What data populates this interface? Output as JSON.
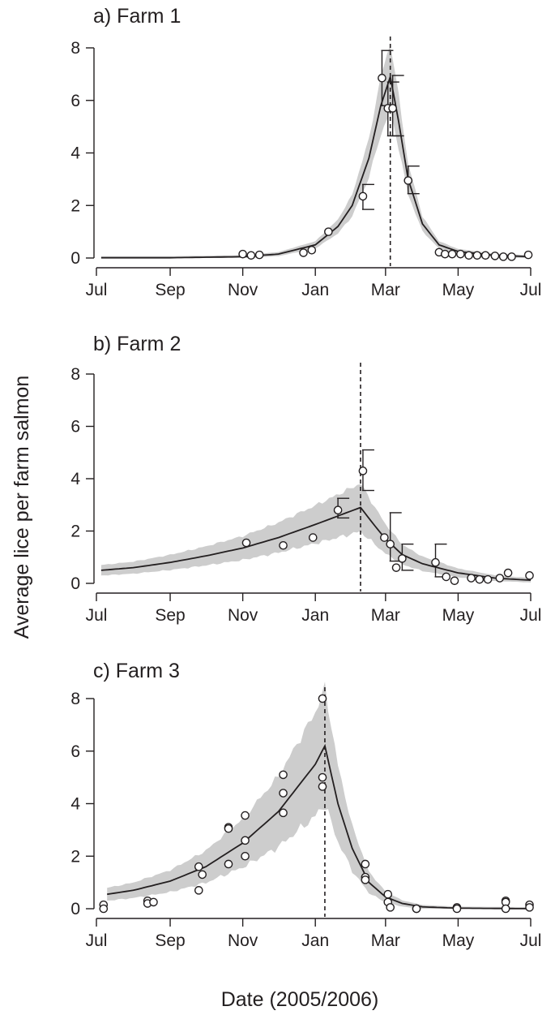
{
  "figure": {
    "ylabel": "Average lice per farm salmon",
    "xlabel": "Date (2005/2006)"
  },
  "chart_data": [
    {
      "type": "scatter",
      "title": "a) Farm 1",
      "x_tick_labels": [
        "Jul",
        "Sep",
        "Nov",
        "Jan",
        "Mar",
        "May",
        "Jul"
      ],
      "x_tick_dates": [
        "2005-07-01",
        "2005-09-01",
        "2005-11-01",
        "2006-01-01",
        "2006-03-01",
        "2006-05-01",
        "2006-07-01"
      ],
      "y_ticks": [
        0,
        2,
        4,
        6,
        8
      ],
      "ylim": [
        0,
        8
      ],
      "xlim": [
        "2005-07-01",
        "2006-07-01"
      ],
      "peak_date": "2006-03-05",
      "model_curve": [
        {
          "x": "2005-07-05",
          "y": 0.01
        },
        {
          "x": "2005-09-01",
          "y": 0.01
        },
        {
          "x": "2005-11-01",
          "y": 0.05
        },
        {
          "x": "2005-12-01",
          "y": 0.15
        },
        {
          "x": "2006-01-01",
          "y": 0.5
        },
        {
          "x": "2006-01-20",
          "y": 1.2
        },
        {
          "x": "2006-02-01",
          "y": 2.0
        },
        {
          "x": "2006-02-15",
          "y": 3.8
        },
        {
          "x": "2006-02-25",
          "y": 5.8
        },
        {
          "x": "2006-03-05",
          "y": 6.9
        },
        {
          "x": "2006-03-12",
          "y": 5.2
        },
        {
          "x": "2006-03-20",
          "y": 3.0
        },
        {
          "x": "2006-04-01",
          "y": 1.3
        },
        {
          "x": "2006-04-15",
          "y": 0.5
        },
        {
          "x": "2006-05-01",
          "y": 0.25
        },
        {
          "x": "2006-06-01",
          "y": 0.1
        },
        {
          "x": "2006-07-01",
          "y": 0.05
        }
      ],
      "band_halfwidth": 0.18,
      "points": [
        {
          "x": "2005-11-01",
          "y": 0.15
        },
        {
          "x": "2005-11-08",
          "y": 0.1
        },
        {
          "x": "2005-11-15",
          "y": 0.12
        },
        {
          "x": "2005-12-22",
          "y": 0.2
        },
        {
          "x": "2005-12-29",
          "y": 0.3
        },
        {
          "x": "2006-01-12",
          "y": 1.0
        },
        {
          "x": "2006-02-10",
          "y": 2.35
        },
        {
          "x": "2006-02-26",
          "y": 6.85
        },
        {
          "x": "2006-03-03",
          "y": 5.7
        },
        {
          "x": "2006-03-07",
          "y": 5.7
        },
        {
          "x": "2006-03-20",
          "y": 2.95
        },
        {
          "x": "2006-04-15",
          "y": 0.22
        },
        {
          "x": "2006-04-20",
          "y": 0.15
        },
        {
          "x": "2006-04-26",
          "y": 0.15
        },
        {
          "x": "2006-05-03",
          "y": 0.15
        },
        {
          "x": "2006-05-10",
          "y": 0.1
        },
        {
          "x": "2006-05-17",
          "y": 0.1
        },
        {
          "x": "2006-05-24",
          "y": 0.1
        },
        {
          "x": "2006-06-01",
          "y": 0.08
        },
        {
          "x": "2006-06-08",
          "y": 0.05
        },
        {
          "x": "2006-06-15",
          "y": 0.05
        },
        {
          "x": "2006-06-29",
          "y": 0.12
        }
      ],
      "error_bars": [
        {
          "x": "2006-02-10",
          "lo": 1.85,
          "hi": 2.8
        },
        {
          "x": "2006-02-26",
          "lo": 5.8,
          "hi": 7.9
        },
        {
          "x": "2006-03-03",
          "lo": 4.65,
          "hi": 6.7
        },
        {
          "x": "2006-03-07",
          "lo": 4.65,
          "hi": 6.95
        },
        {
          "x": "2006-03-20",
          "lo": 2.45,
          "hi": 3.5
        }
      ]
    },
    {
      "type": "scatter",
      "title": "b) Farm 2",
      "x_tick_labels": [
        "Jul",
        "Sep",
        "Nov",
        "Jan",
        "Mar",
        "May",
        "Jul"
      ],
      "x_tick_dates": [
        "2005-07-01",
        "2005-09-01",
        "2005-11-01",
        "2006-01-01",
        "2006-03-01",
        "2006-05-01",
        "2006-07-01"
      ],
      "y_ticks": [
        0,
        2,
        4,
        6,
        8
      ],
      "ylim": [
        0,
        8
      ],
      "xlim": [
        "2005-07-01",
        "2006-07-01"
      ],
      "peak_date": "2006-02-08",
      "model_curve": [
        {
          "x": "2005-07-05",
          "y": 0.5
        },
        {
          "x": "2005-08-01",
          "y": 0.6
        },
        {
          "x": "2005-09-01",
          "y": 0.8
        },
        {
          "x": "2005-10-01",
          "y": 1.05
        },
        {
          "x": "2005-11-01",
          "y": 1.35
        },
        {
          "x": "2005-12-01",
          "y": 1.75
        },
        {
          "x": "2006-01-01",
          "y": 2.25
        },
        {
          "x": "2006-02-08",
          "y": 2.9
        },
        {
          "x": "2006-02-20",
          "y": 2.2
        },
        {
          "x": "2006-03-01",
          "y": 1.7
        },
        {
          "x": "2006-03-15",
          "y": 1.1
        },
        {
          "x": "2006-04-01",
          "y": 0.75
        },
        {
          "x": "2006-05-01",
          "y": 0.4
        },
        {
          "x": "2006-06-01",
          "y": 0.2
        },
        {
          "x": "2006-07-01",
          "y": 0.12
        }
      ],
      "band_halfwidth": 0.3,
      "points": [
        {
          "x": "2005-11-04",
          "y": 1.55
        },
        {
          "x": "2005-12-05",
          "y": 1.45
        },
        {
          "x": "2005-12-30",
          "y": 1.75
        },
        {
          "x": "2006-01-20",
          "y": 2.8
        },
        {
          "x": "2006-02-10",
          "y": 4.3
        },
        {
          "x": "2006-02-28",
          "y": 1.75
        },
        {
          "x": "2006-03-05",
          "y": 1.5
        },
        {
          "x": "2006-03-10",
          "y": 0.6
        },
        {
          "x": "2006-03-15",
          "y": 0.95
        },
        {
          "x": "2006-04-12",
          "y": 0.8
        },
        {
          "x": "2006-04-21",
          "y": 0.25
        },
        {
          "x": "2006-04-28",
          "y": 0.1
        },
        {
          "x": "2006-05-12",
          "y": 0.2
        },
        {
          "x": "2006-05-19",
          "y": 0.15
        },
        {
          "x": "2006-05-26",
          "y": 0.15
        },
        {
          "x": "2006-06-05",
          "y": 0.2
        },
        {
          "x": "2006-06-12",
          "y": 0.4
        },
        {
          "x": "2006-06-30",
          "y": 0.3
        }
      ],
      "error_bars": [
        {
          "x": "2006-01-20",
          "lo": 2.5,
          "hi": 3.25
        },
        {
          "x": "2006-02-10",
          "lo": 3.55,
          "hi": 5.1
        },
        {
          "x": "2006-03-05",
          "lo": 0.85,
          "hi": 2.7
        },
        {
          "x": "2006-03-15",
          "lo": 0.5,
          "hi": 1.5
        },
        {
          "x": "2006-04-12",
          "lo": 0.25,
          "hi": 1.5
        }
      ]
    },
    {
      "type": "scatter",
      "title": "c) Farm 3",
      "x_tick_labels": [
        "Jul",
        "Sep",
        "Nov",
        "Jan",
        "Mar",
        "May",
        "Jul"
      ],
      "x_tick_dates": [
        "2005-07-01",
        "2005-09-01",
        "2005-11-01",
        "2006-01-01",
        "2006-03-01",
        "2006-05-01",
        "2006-07-01"
      ],
      "y_ticks": [
        0,
        2,
        4,
        6,
        8
      ],
      "ylim": [
        0,
        8
      ],
      "xlim": [
        "2005-07-01",
        "2006-07-01"
      ],
      "peak_date": "2006-01-09",
      "model_curve": [
        {
          "x": "2005-07-10",
          "y": 0.55
        },
        {
          "x": "2005-08-01",
          "y": 0.7
        },
        {
          "x": "2005-09-01",
          "y": 1.05
        },
        {
          "x": "2005-10-01",
          "y": 1.6
        },
        {
          "x": "2005-11-01",
          "y": 2.5
        },
        {
          "x": "2005-12-01",
          "y": 3.7
        },
        {
          "x": "2006-01-01",
          "y": 5.5
        },
        {
          "x": "2006-01-09",
          "y": 6.2
        },
        {
          "x": "2006-01-20",
          "y": 4.0
        },
        {
          "x": "2006-02-01",
          "y": 2.3
        },
        {
          "x": "2006-02-15",
          "y": 1.0
        },
        {
          "x": "2006-03-01",
          "y": 0.45
        },
        {
          "x": "2006-03-15",
          "y": 0.2
        },
        {
          "x": "2006-04-01",
          "y": 0.07
        },
        {
          "x": "2006-05-01",
          "y": 0.02
        },
        {
          "x": "2006-07-01",
          "y": 0.0
        }
      ],
      "band_halfwidth": 0.35,
      "points": [
        {
          "x": "2005-07-07",
          "y": 0.15
        },
        {
          "x": "2005-07-07",
          "y": 0.0
        },
        {
          "x": "2005-08-13",
          "y": 0.3
        },
        {
          "x": "2005-08-13",
          "y": 0.2
        },
        {
          "x": "2005-08-18",
          "y": 0.25
        },
        {
          "x": "2005-09-25",
          "y": 1.6
        },
        {
          "x": "2005-09-25",
          "y": 0.7
        },
        {
          "x": "2005-09-28",
          "y": 1.3
        },
        {
          "x": "2005-10-20",
          "y": 3.1
        },
        {
          "x": "2005-10-20",
          "y": 3.05
        },
        {
          "x": "2005-10-20",
          "y": 1.7
        },
        {
          "x": "2005-11-03",
          "y": 3.55
        },
        {
          "x": "2005-11-03",
          "y": 2.6
        },
        {
          "x": "2005-11-03",
          "y": 2.0
        },
        {
          "x": "2005-12-05",
          "y": 5.1
        },
        {
          "x": "2005-12-05",
          "y": 4.4
        },
        {
          "x": "2005-12-05",
          "y": 3.65
        },
        {
          "x": "2006-01-07",
          "y": 8.0
        },
        {
          "x": "2006-01-07",
          "y": 5.0
        },
        {
          "x": "2006-01-07",
          "y": 4.65
        },
        {
          "x": "2006-02-12",
          "y": 1.7
        },
        {
          "x": "2006-02-12",
          "y": 1.2
        },
        {
          "x": "2006-02-12",
          "y": 1.1
        },
        {
          "x": "2006-03-03",
          "y": 0.55
        },
        {
          "x": "2006-03-03",
          "y": 0.25
        },
        {
          "x": "2006-03-05",
          "y": 0.05
        },
        {
          "x": "2006-03-27",
          "y": 0.0
        },
        {
          "x": "2006-03-27",
          "y": 0.0
        },
        {
          "x": "2006-04-30",
          "y": 0.05
        },
        {
          "x": "2006-04-30",
          "y": 0.0
        },
        {
          "x": "2006-06-10",
          "y": 0.3
        },
        {
          "x": "2006-06-10",
          "y": 0.25
        },
        {
          "x": "2006-06-10",
          "y": 0.0
        },
        {
          "x": "2006-06-30",
          "y": 0.15
        },
        {
          "x": "2006-06-30",
          "y": 0.05
        }
      ],
      "error_bars": []
    }
  ]
}
